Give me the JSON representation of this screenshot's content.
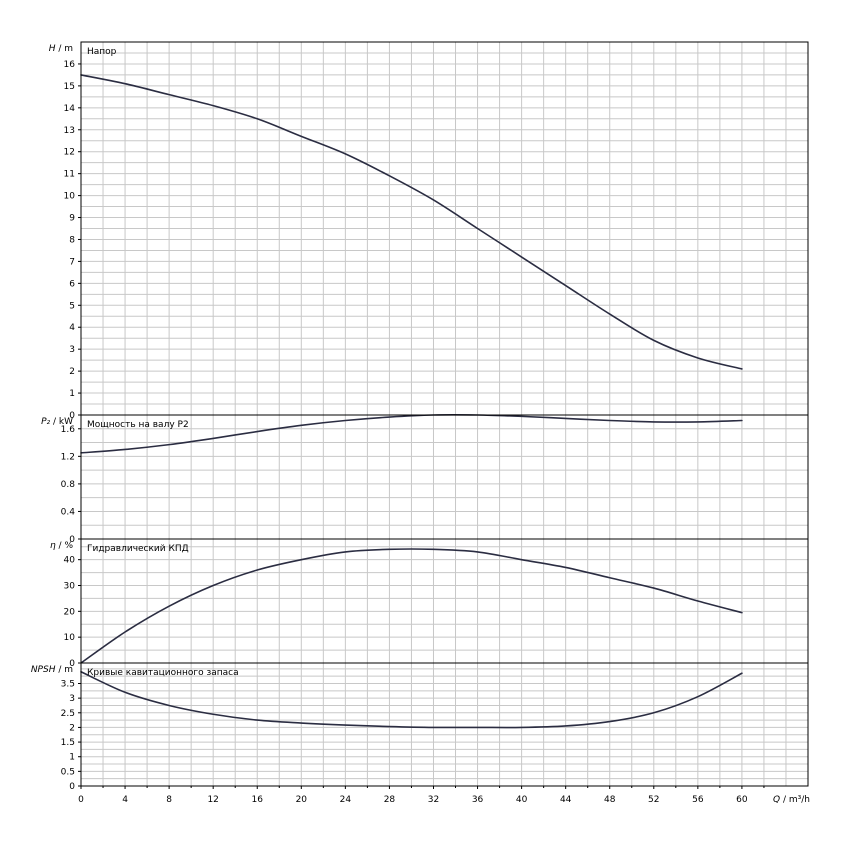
{
  "chart_data": {
    "type": "line",
    "x_axis": {
      "label_sym": "Q",
      "label_unit": " / m³/h",
      "ticks": [
        0,
        4,
        8,
        12,
        16,
        20,
        24,
        28,
        32,
        36,
        40,
        44,
        48,
        52,
        56,
        60
      ],
      "range": [
        0,
        66
      ]
    },
    "grid": true,
    "panels": [
      {
        "id": "head",
        "title": "Напор",
        "ylabel_sym": "H",
        "ylabel_unit": " / m",
        "ylim": [
          0,
          17
        ],
        "yticks": [
          "0",
          "1",
          "2",
          "3",
          "4",
          "5",
          "6",
          "7",
          "8",
          "9",
          "10",
          "11",
          "12",
          "13",
          "14",
          "15",
          "16"
        ],
        "series": [
          {
            "x": [
              0,
              4,
              8,
              12,
              16,
              20,
              24,
              28,
              32,
              36,
              40,
              44,
              48,
              52,
              56,
              60
            ],
            "y": [
              15.5,
              15.1,
              14.6,
              14.1,
              13.5,
              12.7,
              11.9,
              10.9,
              9.8,
              8.5,
              7.2,
              5.9,
              4.6,
              3.4,
              2.6,
              2.1
            ]
          }
        ]
      },
      {
        "id": "power",
        "title": "Мощность на валу P2",
        "ylabel_sym": "P₂",
        "ylabel_unit": " / kW",
        "ylim": [
          0,
          1.8
        ],
        "yticks": [
          "0",
          "0.4",
          "0.8",
          "1.2",
          "1.6"
        ],
        "series": [
          {
            "x": [
              0,
              4,
              8,
              12,
              16,
              20,
              24,
              28,
              32,
              36,
              40,
              44,
              48,
              52,
              56,
              60
            ],
            "y": [
              1.25,
              1.3,
              1.37,
              1.46,
              1.56,
              1.65,
              1.72,
              1.77,
              1.8,
              1.8,
              1.78,
              1.75,
              1.72,
              1.7,
              1.7,
              1.72
            ]
          }
        ]
      },
      {
        "id": "efficiency",
        "title": "Гидравлический КПД",
        "ylabel_sym": "η",
        "ylabel_unit": " / %",
        "ylim": [
          0,
          48
        ],
        "yticks": [
          "0",
          "10",
          "20",
          "30",
          "40"
        ],
        "series": [
          {
            "x": [
              0,
              4,
              8,
              12,
              16,
              20,
              24,
              28,
              32,
              36,
              40,
              44,
              48,
              52,
              56,
              60
            ],
            "y": [
              0,
              12,
              22,
              30,
              36,
              40,
              43,
              44,
              44,
              43,
              40,
              37,
              33,
              29,
              24,
              19.5
            ]
          }
        ]
      },
      {
        "id": "npsh",
        "title": "Кривые кавитационного запаса",
        "ylabel_sym": "NPSH",
        "ylabel_unit": " / m",
        "ylim": [
          0,
          4.2
        ],
        "yticks": [
          "0",
          "0.5",
          "1",
          "1.5",
          "2",
          "2.5",
          "3",
          "3.5"
        ],
        "series": [
          {
            "x": [
              0,
              4,
              8,
              12,
              16,
              20,
              24,
              28,
              32,
              36,
              40,
              44,
              48,
              52,
              56,
              60
            ],
            "y": [
              3.9,
              3.2,
              2.75,
              2.45,
              2.25,
              2.15,
              2.08,
              2.03,
              2.0,
              2.0,
              2.0,
              2.05,
              2.2,
              2.5,
              3.05,
              3.85
            ]
          }
        ]
      }
    ]
  }
}
